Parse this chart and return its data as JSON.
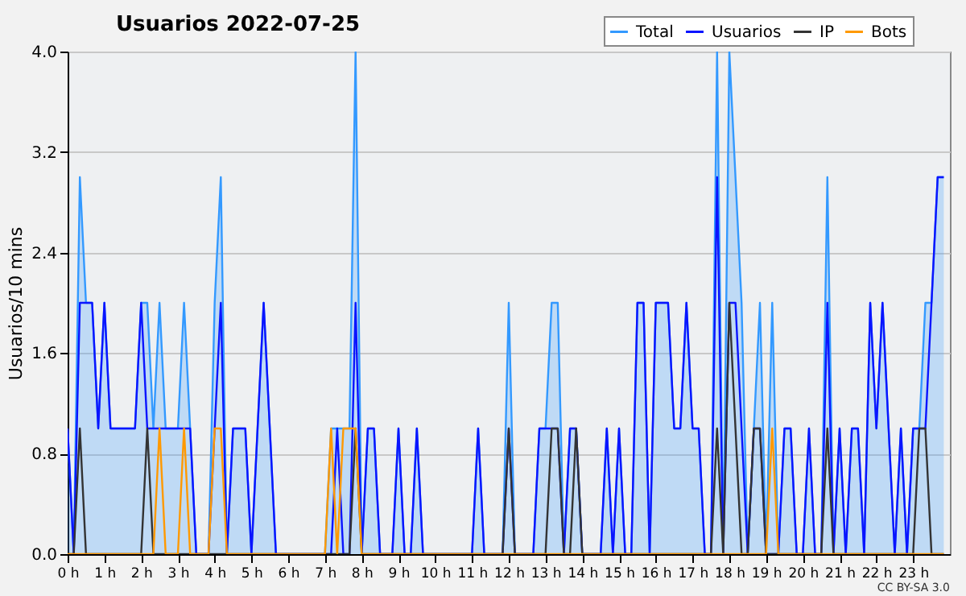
{
  "chart_data": {
    "type": "line",
    "title": "Usuarios  2022-07-25",
    "ylabel": "Usuarios/10 mins",
    "x": [
      0,
      0.167,
      0.333,
      0.5,
      0.667,
      0.833,
      1,
      1.167,
      1.333,
      1.5,
      1.667,
      1.833,
      2,
      2.167,
      2.333,
      2.5,
      2.667,
      2.833,
      3,
      3.167,
      3.333,
      3.5,
      3.667,
      3.833,
      4,
      4.167,
      4.333,
      4.5,
      4.667,
      4.833,
      5,
      5.167,
      5.333,
      5.5,
      5.667,
      5.833,
      6,
      6.167,
      6.333,
      6.5,
      6.667,
      6.833,
      7,
      7.167,
      7.333,
      7.5,
      7.667,
      7.833,
      8,
      8.167,
      8.333,
      8.5,
      8.667,
      8.833,
      9,
      9.167,
      9.333,
      9.5,
      9.667,
      9.833,
      10,
      10.167,
      10.333,
      10.5,
      10.667,
      10.833,
      11,
      11.167,
      11.333,
      11.5,
      11.667,
      11.833,
      12,
      12.167,
      12.333,
      12.5,
      12.667,
      12.833,
      13,
      13.167,
      13.333,
      13.5,
      13.667,
      13.833,
      14,
      14.167,
      14.333,
      14.5,
      14.667,
      14.833,
      15,
      15.167,
      15.333,
      15.5,
      15.667,
      15.833,
      16,
      16.167,
      16.333,
      16.5,
      16.667,
      16.833,
      17,
      17.167,
      17.333,
      17.5,
      17.667,
      17.833,
      18,
      18.167,
      18.333,
      18.5,
      18.667,
      18.833,
      19,
      19.167,
      19.333,
      19.5,
      19.667,
      19.833,
      20,
      20.167,
      20.333,
      20.5,
      20.667,
      20.833,
      21,
      21.167,
      21.333,
      21.5,
      21.667,
      21.833,
      22,
      22.167,
      22.333,
      22.5,
      22.667,
      22.833,
      23,
      23.167,
      23.333,
      23.5,
      23.667,
      23.833
    ],
    "series": [
      {
        "name": "Total",
        "type": "area",
        "color": "#3399ff",
        "values": [
          1,
          0,
          3,
          2,
          2,
          1,
          2,
          1,
          1,
          1,
          1,
          1,
          2,
          2,
          1,
          2,
          1,
          1,
          1,
          2,
          1,
          0,
          0,
          0,
          2,
          3,
          0,
          1,
          1,
          1,
          0,
          1,
          2,
          1,
          0,
          0,
          0,
          0,
          0,
          0,
          0,
          0,
          0,
          1,
          1,
          1,
          1,
          4,
          0,
          1,
          1,
          0,
          0,
          0,
          1,
          0,
          0,
          1,
          0,
          0,
          0,
          0,
          0,
          0,
          0,
          0,
          0,
          1,
          0,
          0,
          0,
          0,
          2,
          0,
          0,
          0,
          0,
          1,
          1,
          2,
          2,
          0,
          1,
          1,
          0,
          0,
          0,
          0,
          1,
          0,
          1,
          0,
          0,
          2,
          2,
          0,
          2,
          2,
          2,
          1,
          1,
          2,
          1,
          1,
          0,
          0,
          4,
          0,
          4,
          3,
          2,
          0,
          1,
          2,
          0,
          2,
          0,
          1,
          1,
          0,
          0,
          1,
          0,
          0,
          3,
          0,
          1,
          0,
          1,
          1,
          0,
          2,
          1,
          2,
          1,
          0,
          1,
          0,
          1,
          1,
          2,
          2,
          3,
          3
        ]
      },
      {
        "name": "Usuarios",
        "type": "line",
        "color": "#0a14ff",
        "values": [
          1,
          0,
          2,
          2,
          2,
          1,
          2,
          1,
          1,
          1,
          1,
          1,
          2,
          1,
          1,
          1,
          1,
          1,
          1,
          1,
          1,
          0,
          0,
          0,
          1,
          2,
          0,
          1,
          1,
          1,
          0,
          1,
          2,
          1,
          0,
          0,
          0,
          0,
          0,
          0,
          0,
          0,
          0,
          0,
          1,
          0,
          0,
          2,
          0,
          1,
          1,
          0,
          0,
          0,
          1,
          0,
          0,
          1,
          0,
          0,
          0,
          0,
          0,
          0,
          0,
          0,
          0,
          1,
          0,
          0,
          0,
          0,
          1,
          0,
          0,
          0,
          0,
          1,
          1,
          1,
          1,
          0,
          1,
          1,
          0,
          0,
          0,
          0,
          1,
          0,
          1,
          0,
          0,
          2,
          2,
          0,
          2,
          2,
          2,
          1,
          1,
          2,
          1,
          1,
          0,
          0,
          3,
          0,
          2,
          2,
          1,
          0,
          1,
          1,
          0,
          0,
          0,
          1,
          1,
          0,
          0,
          1,
          0,
          0,
          2,
          0,
          1,
          0,
          1,
          1,
          0,
          2,
          1,
          2,
          1,
          0,
          1,
          0,
          1,
          1,
          1,
          2,
          3,
          3
        ]
      },
      {
        "name": "IP",
        "type": "line",
        "color": "#333333",
        "values": [
          0,
          0,
          1,
          0,
          0,
          0,
          0,
          0,
          0,
          0,
          0,
          0,
          0,
          1,
          0,
          0,
          0,
          0,
          0,
          0,
          0,
          0,
          0,
          0,
          0,
          0,
          0,
          0,
          0,
          0,
          0,
          0,
          0,
          0,
          0,
          0,
          0,
          0,
          0,
          0,
          0,
          0,
          0,
          0,
          0,
          0,
          0,
          1,
          0,
          0,
          0,
          0,
          0,
          0,
          0,
          0,
          0,
          0,
          0,
          0,
          0,
          0,
          0,
          0,
          0,
          0,
          0,
          0,
          0,
          0,
          0,
          0,
          1,
          0,
          0,
          0,
          0,
          0,
          0,
          1,
          1,
          0,
          0,
          1,
          0,
          0,
          0,
          0,
          0,
          0,
          0,
          0,
          0,
          0,
          0,
          0,
          0,
          0,
          0,
          0,
          0,
          0,
          0,
          0,
          0,
          0,
          1,
          0,
          2,
          1,
          0,
          0,
          1,
          1,
          0,
          0,
          0,
          0,
          0,
          0,
          0,
          0,
          0,
          0,
          1,
          0,
          0,
          0,
          0,
          0,
          0,
          0,
          0,
          0,
          0,
          0,
          0,
          0,
          0,
          1,
          1,
          0,
          0,
          0
        ]
      },
      {
        "name": "Bots",
        "type": "line",
        "color": "#ff9900",
        "values": [
          0,
          0,
          0,
          0,
          0,
          0,
          0,
          0,
          0,
          0,
          0,
          0,
          0,
          0,
          0,
          1,
          0,
          0,
          0,
          1,
          0,
          0,
          0,
          0,
          1,
          1,
          0,
          0,
          0,
          0,
          0,
          0,
          0,
          0,
          0,
          0,
          0,
          0,
          0,
          0,
          0,
          0,
          0,
          1,
          0,
          1,
          1,
          1,
          0,
          0,
          0,
          0,
          0,
          0,
          0,
          0,
          0,
          0,
          0,
          0,
          0,
          0,
          0,
          0,
          0,
          0,
          0,
          0,
          0,
          0,
          0,
          0,
          0,
          0,
          0,
          0,
          0,
          0,
          0,
          0,
          0,
          0,
          0,
          0,
          0,
          0,
          0,
          0,
          0,
          0,
          0,
          0,
          0,
          0,
          0,
          0,
          0,
          0,
          0,
          0,
          0,
          0,
          0,
          0,
          0,
          0,
          0,
          0,
          0,
          0,
          0,
          0,
          0,
          0,
          0,
          1,
          0,
          0,
          0,
          0,
          0,
          0,
          0,
          0,
          0,
          0,
          0,
          0,
          0,
          0,
          0,
          0,
          0,
          0,
          0,
          0,
          0,
          0,
          0,
          0,
          0,
          0,
          0,
          0
        ]
      }
    ],
    "xlim": [
      0,
      24
    ],
    "xticks": [
      {
        "value": 0,
        "label": "0 h"
      },
      {
        "value": 1,
        "label": "1 h"
      },
      {
        "value": 2,
        "label": "2 h"
      },
      {
        "value": 3,
        "label": "3 h"
      },
      {
        "value": 4,
        "label": "4 h"
      },
      {
        "value": 5,
        "label": "5 h"
      },
      {
        "value": 6,
        "label": "6 h"
      },
      {
        "value": 7,
        "label": "7 h"
      },
      {
        "value": 8,
        "label": "8 h"
      },
      {
        "value": 9,
        "label": "9 h"
      },
      {
        "value": 10,
        "label": "10 h"
      },
      {
        "value": 11,
        "label": "11 h"
      },
      {
        "value": 12,
        "label": "12 h"
      },
      {
        "value": 13,
        "label": "13 h"
      },
      {
        "value": 14,
        "label": "14 h"
      },
      {
        "value": 15,
        "label": "15 h"
      },
      {
        "value": 16,
        "label": "16 h"
      },
      {
        "value": 17,
        "label": "17 h"
      },
      {
        "value": 18,
        "label": "18 h"
      },
      {
        "value": 19,
        "label": "19 h"
      },
      {
        "value": 20,
        "label": "20 h"
      },
      {
        "value": 21,
        "label": "21 h"
      },
      {
        "value": 22,
        "label": "22 h"
      },
      {
        "value": 23,
        "label": "23 h"
      }
    ],
    "ylim": [
      0,
      4
    ],
    "yticks": [
      {
        "value": 0,
        "label": "0.0"
      },
      0.8,
      1.6,
      2.4,
      3.2,
      {
        "value": 4,
        "label": "4.0"
      }
    ],
    "grid": "y",
    "legend": "top right",
    "marker": "none",
    "line_style": "solid",
    "annotations": [
      "CC BY-SA 3.0"
    ]
  }
}
